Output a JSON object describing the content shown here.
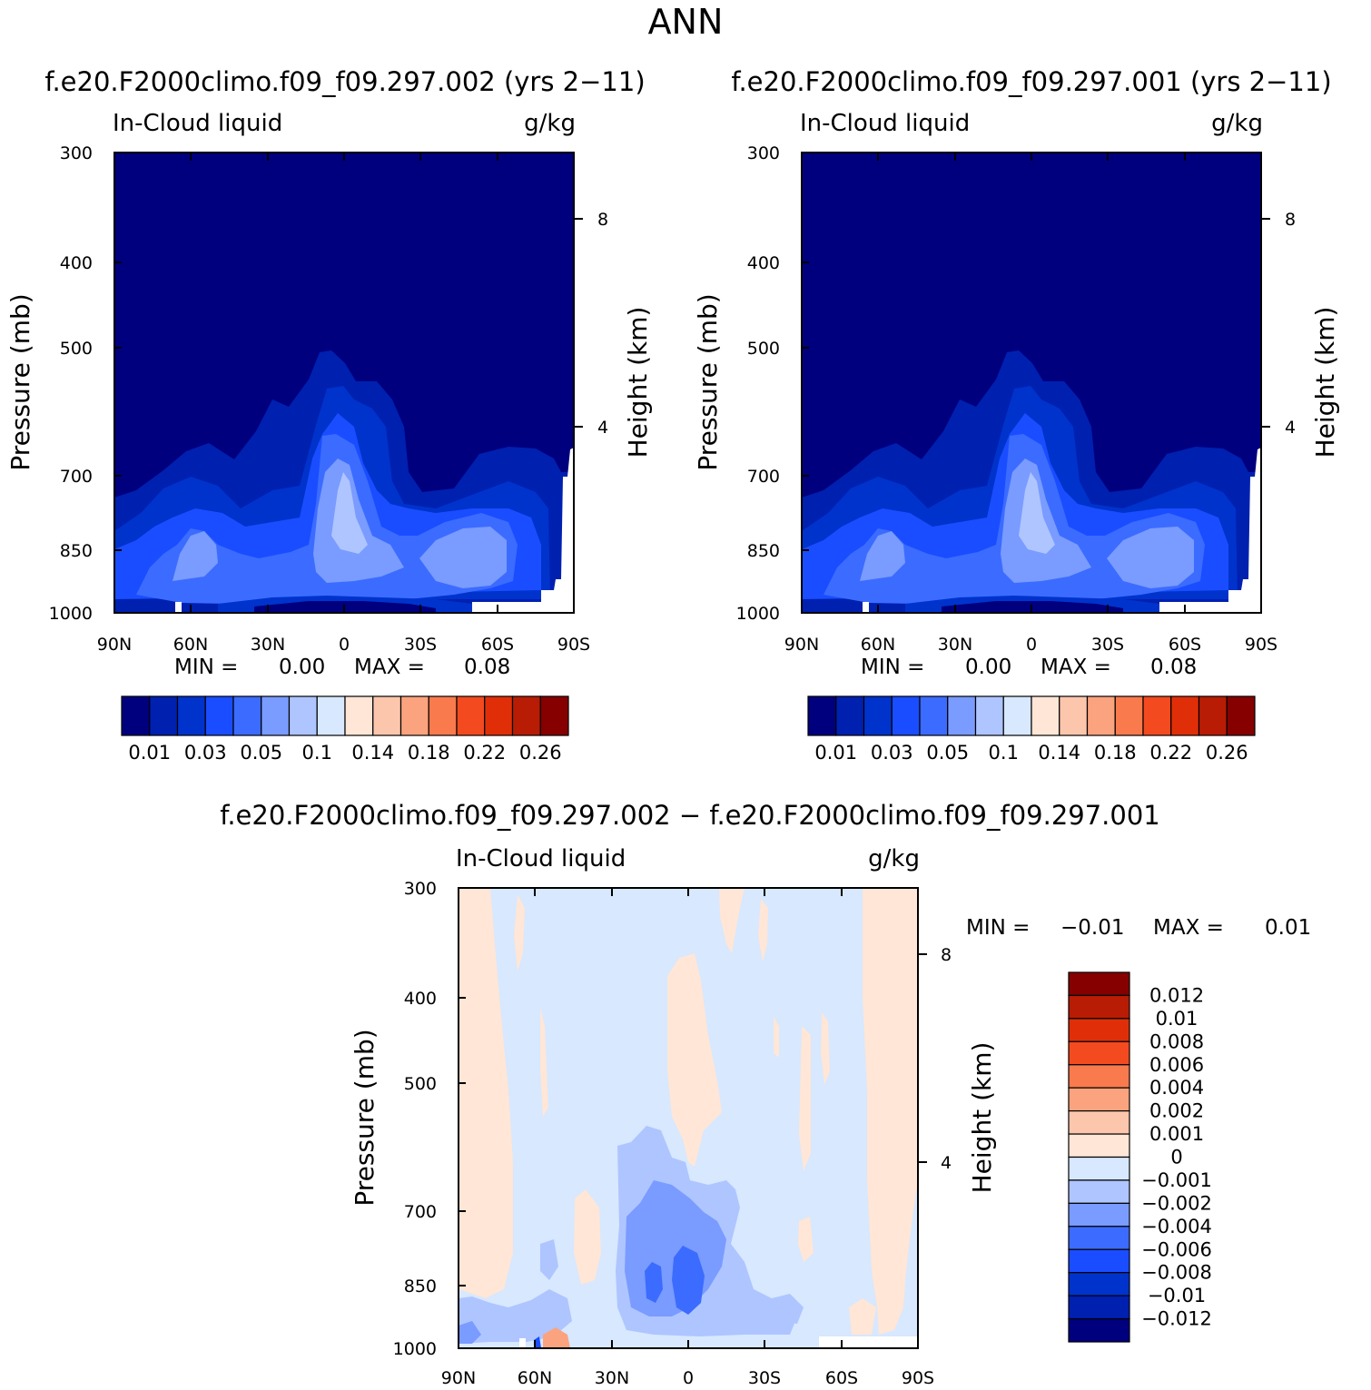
{
  "figure": {
    "title": "ANN",
    "colors": {
      "absolute_scale": [
        "#00007f",
        "#0020b0",
        "#0033cc",
        "#1a4dff",
        "#3b6cff",
        "#7a9bff",
        "#aec5ff",
        "#d7e8ff",
        "#ffe6d6",
        "#fcc6ad",
        "#fba37e",
        "#f97a4d",
        "#f44a1f",
        "#e02f08",
        "#b81c05",
        "#860000"
      ],
      "difference_scale": [
        "#00007f",
        "#0020b0",
        "#0033cc",
        "#1a4dff",
        "#3b6cff",
        "#7a9bff",
        "#aec5ff",
        "#d7e8ff",
        "#ffe6d6",
        "#fcc6ad",
        "#fba37e",
        "#f97a4d",
        "#f44a1f",
        "#e02f08",
        "#b81c05",
        "#860000"
      ]
    }
  },
  "chart_data": [
    {
      "type": "heatmap",
      "title": "f.e20.F2000climo.f09_f09.297.002 (yrs 2-11)",
      "variable_label": "In-Cloud liquid",
      "units": "g/kg",
      "ylabel": "Pressure (mb)",
      "right_label": "Height (km)",
      "x_ticks": [
        "90N",
        "60N",
        "30N",
        "0",
        "30S",
        "60S",
        "90S"
      ],
      "y_ticks": [
        300,
        400,
        500,
        700,
        850,
        1000
      ],
      "right_ticks": [
        8,
        4
      ],
      "ylim": [
        300,
        1000
      ],
      "min_text": "MIN =",
      "min_value": "0.00",
      "max_text": "MAX =",
      "max_value": "0.08",
      "colorbar_labels": [
        "0.01",
        "0.03",
        "0.05",
        "0.1",
        "0.14",
        "0.18",
        "0.22",
        "0.26"
      ]
    },
    {
      "type": "heatmap",
      "title": "f.e20.F2000climo.f09_f09.297.001 (yrs 2-11)",
      "variable_label": "In-Cloud liquid",
      "units": "g/kg",
      "ylabel": "Pressure (mb)",
      "right_label": "Height (km)",
      "x_ticks": [
        "90N",
        "60N",
        "30N",
        "0",
        "30S",
        "60S",
        "90S"
      ],
      "y_ticks": [
        300,
        400,
        500,
        700,
        850,
        1000
      ],
      "right_ticks": [
        8,
        4
      ],
      "ylim": [
        300,
        1000
      ],
      "min_text": "MIN =",
      "min_value": "0.00",
      "max_text": "MAX =",
      "max_value": "0.08",
      "colorbar_labels": [
        "0.01",
        "0.03",
        "0.05",
        "0.1",
        "0.14",
        "0.18",
        "0.22",
        "0.26"
      ]
    },
    {
      "type": "heatmap",
      "title": "f.e20.F2000climo.f09_f09.297.002 - f.e20.F2000climo.f09_f09.297.001",
      "variable_label": "In-Cloud liquid",
      "units": "g/kg",
      "ylabel": "Pressure (mb)",
      "right_label": "Height (km)",
      "x_ticks": [
        "90N",
        "60N",
        "30N",
        "0",
        "30S",
        "60S",
        "90S"
      ],
      "y_ticks": [
        300,
        400,
        500,
        700,
        850,
        1000
      ],
      "right_ticks": [
        8,
        4
      ],
      "ylim": [
        300,
        1000
      ],
      "min_text": "MIN =",
      "min_value": "-0.01",
      "max_text": "MAX =",
      "max_value": "0.01",
      "colorbar_labels": [
        "0.012",
        "0.01",
        "0.008",
        "0.006",
        "0.004",
        "0.002",
        "0.001",
        "0",
        "-0.001",
        "-0.002",
        "-0.004",
        "-0.006",
        "-0.008",
        "-0.01",
        "-0.012"
      ]
    }
  ]
}
